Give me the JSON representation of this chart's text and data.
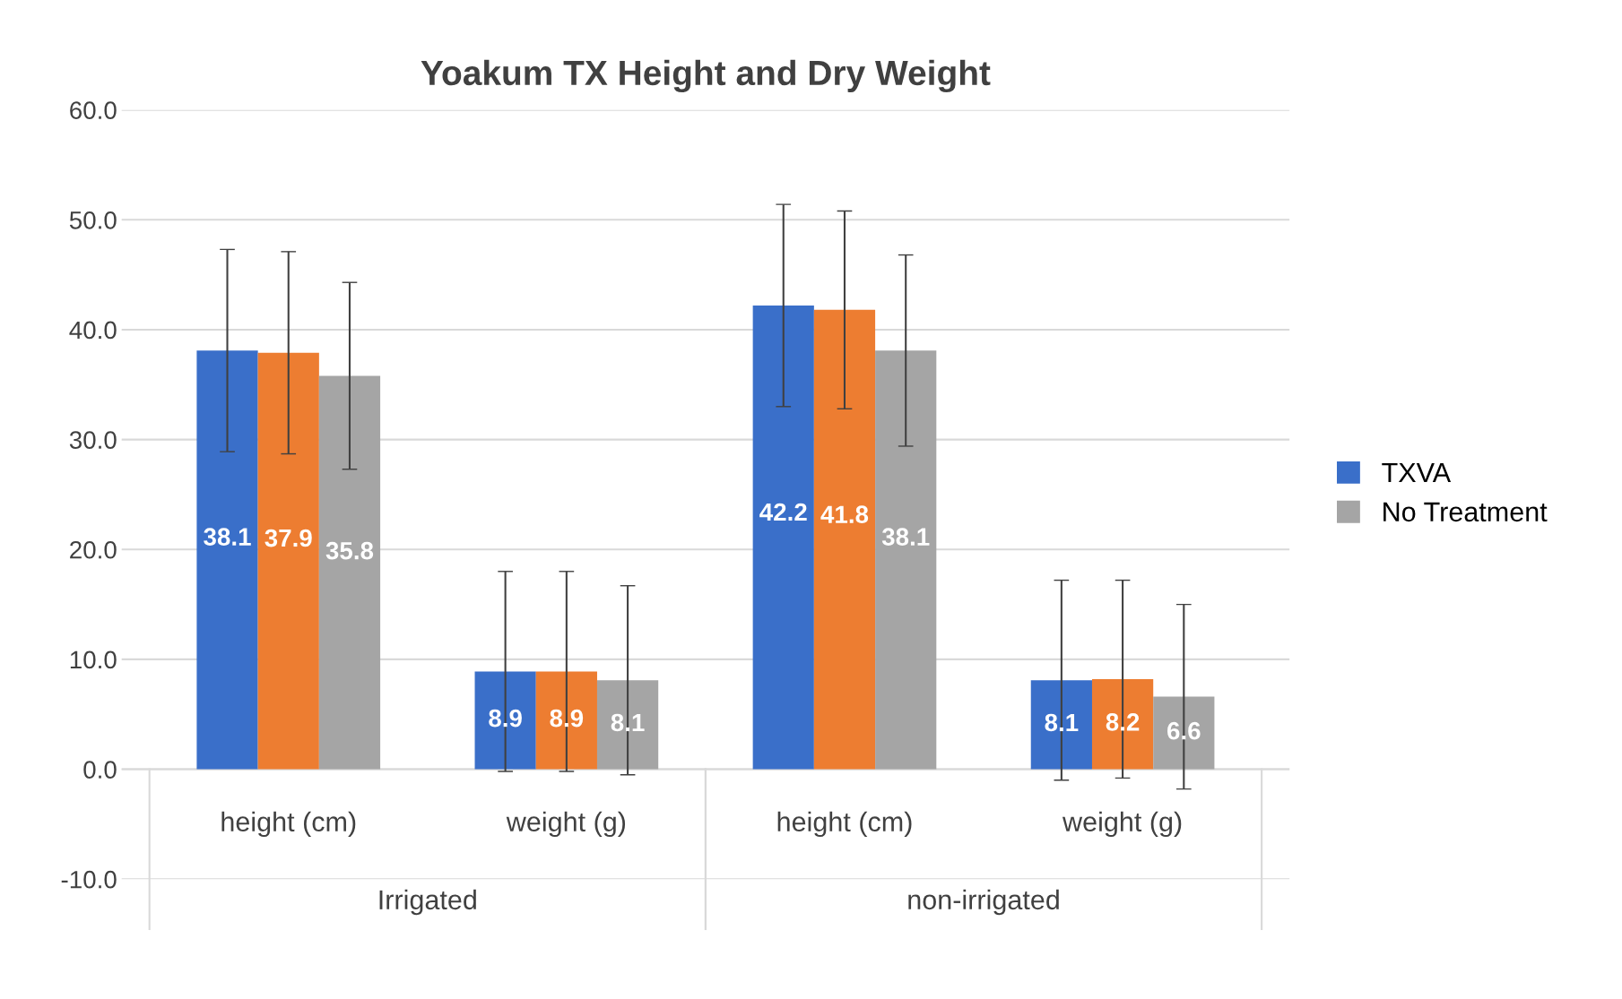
{
  "chart_data": {
    "type": "bar",
    "title": "Yoakum TX Height and Dry Weight",
    "categories": [
      "height (cm)",
      "weight (g)",
      "height (cm)",
      "weight (g)"
    ],
    "series": [
      {
        "name": "TXVA",
        "color": "#3a6fc9",
        "values": [
          38.1,
          8.9,
          42.2,
          8.1
        ],
        "errors": [
          9.2,
          9.1,
          9.2,
          9.1
        ]
      },
      {
        "color": "#ed7d31",
        "values": [
          37.9,
          8.9,
          41.8,
          8.2
        ],
        "errors": [
          9.2,
          9.1,
          9.0,
          9.0
        ]
      },
      {
        "name": "No Treatment",
        "color": "#a5a5a5",
        "values": [
          35.8,
          8.1,
          38.1,
          6.6
        ],
        "errors": [
          8.5,
          8.6,
          8.7,
          8.4
        ]
      }
    ],
    "ylim": [
      -10,
      60
    ],
    "yticks": [
      {
        "value": -10,
        "label": "-10.0"
      },
      {
        "value": 0,
        "label": "0.0"
      },
      {
        "value": 10,
        "label": "10.0"
      },
      {
        "value": 20,
        "label": "20.0"
      },
      {
        "value": 30,
        "label": "30.0"
      },
      {
        "value": 40,
        "label": "40.0"
      },
      {
        "value": 50,
        "label": "50.0"
      },
      {
        "value": 60,
        "label": "60.0"
      }
    ],
    "annotations": [
      "Irrigated",
      "non-irrigated"
    ],
    "grid": "y",
    "legend": "right",
    "data_labels": true
  }
}
